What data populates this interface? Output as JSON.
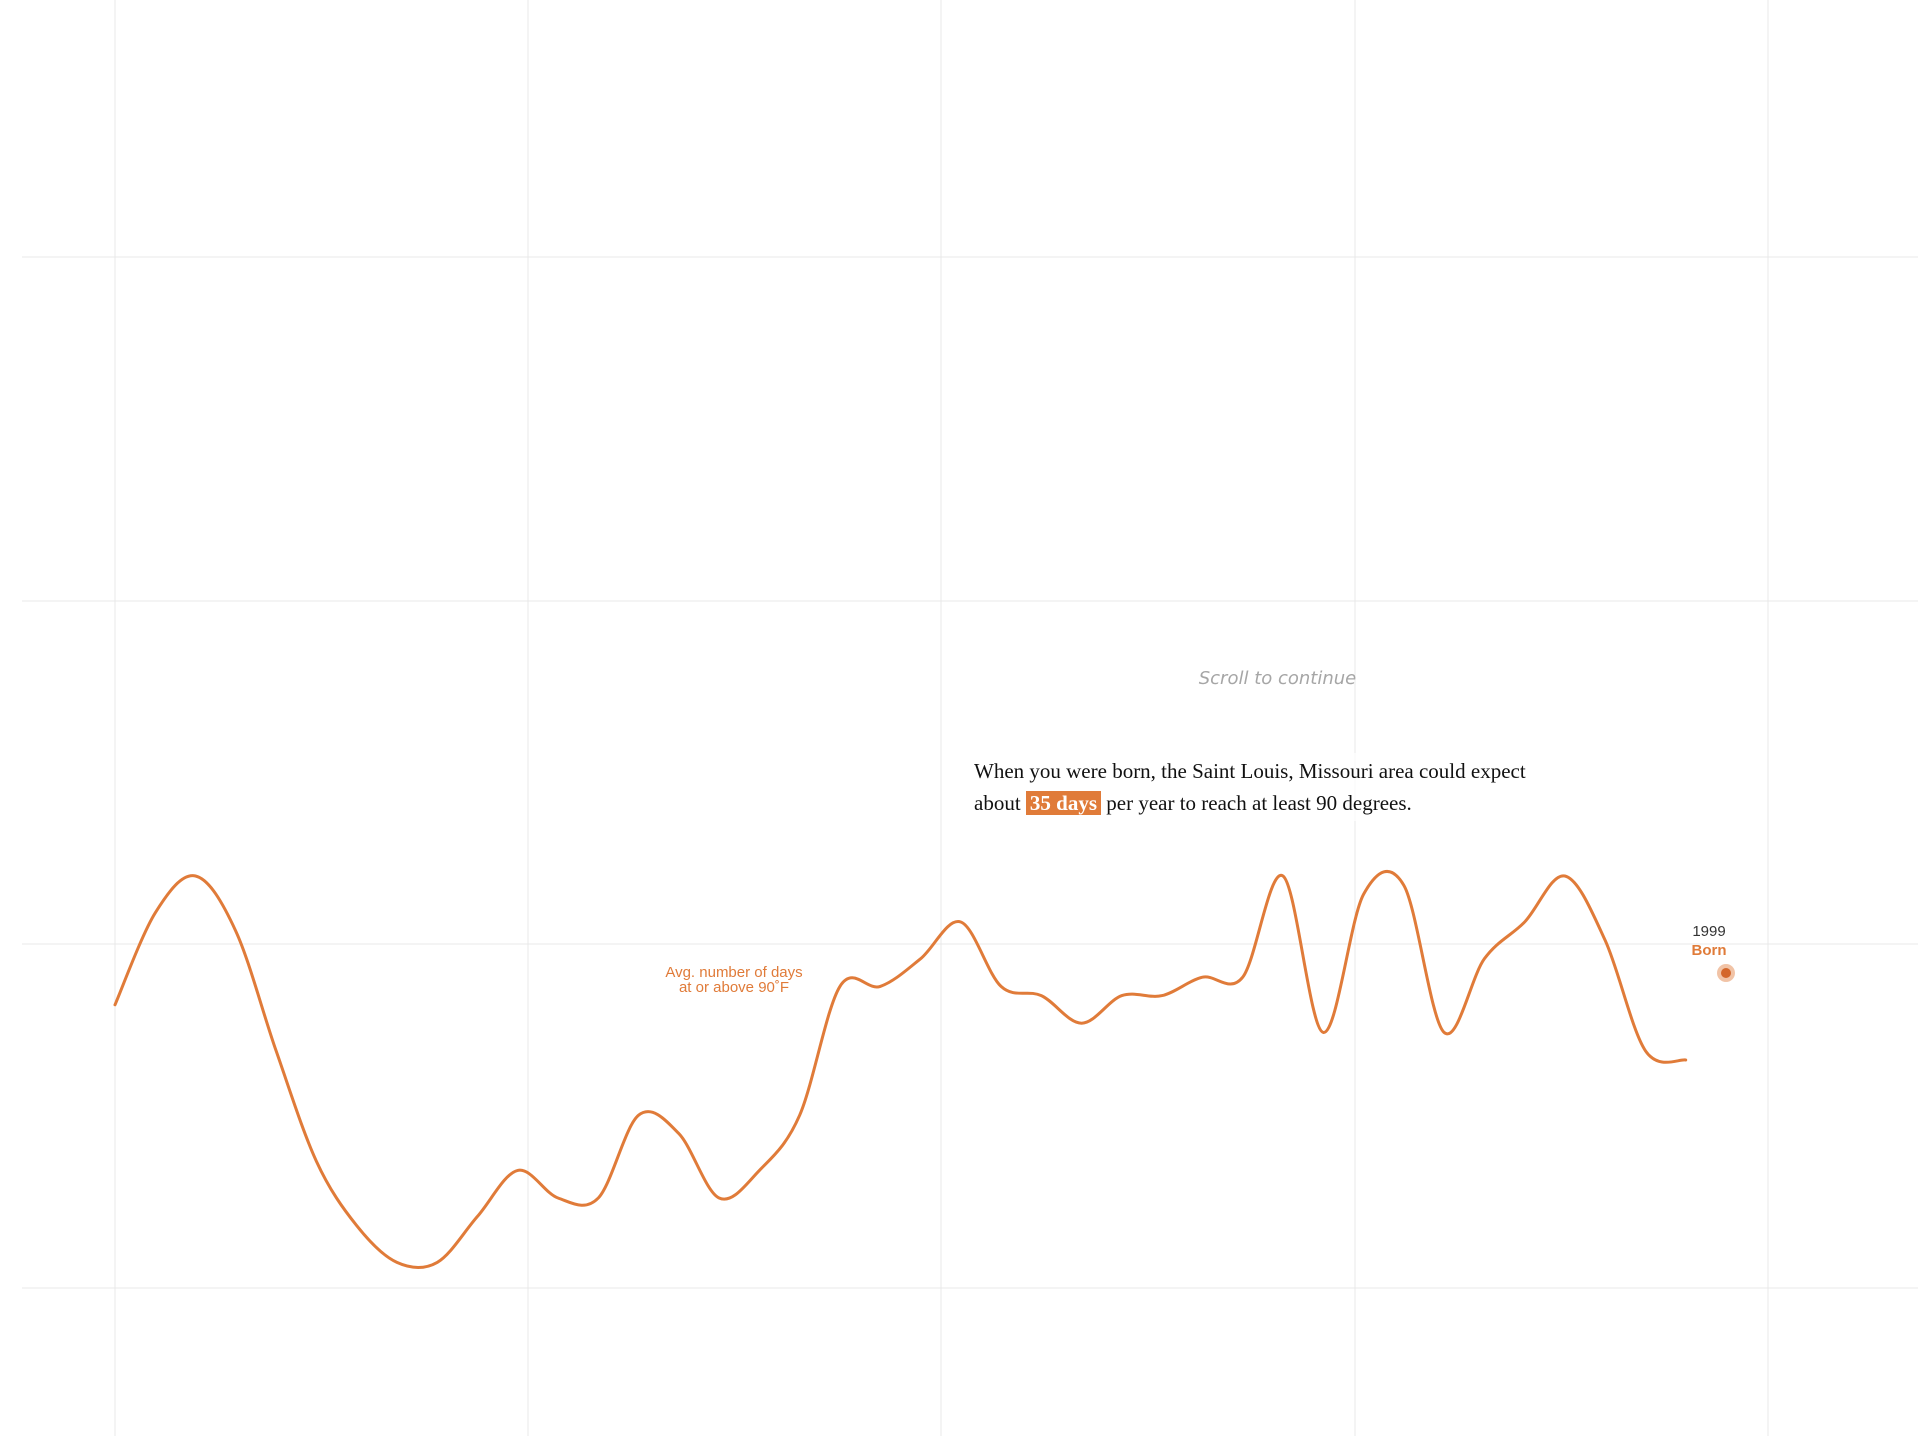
{
  "scroll_hint": "Scroll to continue",
  "narrative": {
    "part1": "When you were born, the Saint Louis, Missouri area could expect about",
    "highlight": "35 days",
    "part2": "per year to reach at least 90 degrees."
  },
  "colors": {
    "accent": "#e07b39",
    "grid": "#e9e9e9",
    "hint": "#a6a6a6"
  },
  "chart_data": {
    "type": "line",
    "grid": true,
    "series_label": [
      "Avg. number of days",
      "at or above 90˚F"
    ],
    "marker": {
      "year": "1999",
      "label": "Born"
    },
    "ylim": [
      0,
      75
    ],
    "xlim": [
      1960,
      2000
    ],
    "series": [
      {
        "values_xy": [
          [
            1960,
            31
          ],
          [
            1961,
            41
          ],
          [
            1962,
            45
          ],
          [
            1963,
            39
          ],
          [
            1964,
            26
          ],
          [
            1965,
            14
          ],
          [
            1966,
            7
          ],
          [
            1967,
            3
          ],
          [
            1968,
            3
          ],
          [
            1969,
            8
          ],
          [
            1970,
            13
          ],
          [
            1971,
            10
          ],
          [
            1972,
            10
          ],
          [
            1973,
            19
          ],
          [
            1974,
            17
          ],
          [
            1975,
            10
          ],
          [
            1976,
            13
          ],
          [
            1977,
            19
          ],
          [
            1978,
            33
          ],
          [
            1979,
            33
          ],
          [
            1980,
            36
          ],
          [
            1981,
            40
          ],
          [
            1982,
            33
          ],
          [
            1983,
            32
          ],
          [
            1984,
            29
          ],
          [
            1985,
            32
          ],
          [
            1986,
            32
          ],
          [
            1987,
            34
          ],
          [
            1988,
            34
          ],
          [
            1989,
            45
          ],
          [
            1990,
            28
          ],
          [
            1991,
            43
          ],
          [
            1992,
            44
          ],
          [
            1993,
            28
          ],
          [
            1994,
            36
          ],
          [
            1995,
            40
          ],
          [
            1996,
            45
          ],
          [
            1997,
            38
          ],
          [
            1998,
            26
          ],
          [
            1999,
            25
          ]
        ]
      }
    ]
  }
}
